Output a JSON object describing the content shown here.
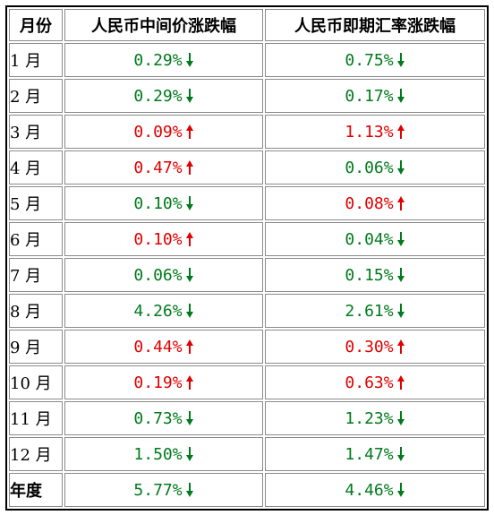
{
  "table": {
    "headers": {
      "month": "月份",
      "mid_change": "人民币中间价涨跌幅",
      "spot_change": "人民币即期汇率涨跌幅"
    },
    "rows": [
      {
        "month": "1 月",
        "mid": "0.29%",
        "mid_dir": "down",
        "spot": "0.75%",
        "spot_dir": "down"
      },
      {
        "month": "2 月",
        "mid": "0.29%",
        "mid_dir": "down",
        "spot": "0.17%",
        "spot_dir": "down"
      },
      {
        "month": "3 月",
        "mid": "0.09%",
        "mid_dir": "up",
        "spot": "1.13%",
        "spot_dir": "up"
      },
      {
        "month": "4 月",
        "mid": "0.47%",
        "mid_dir": "up",
        "spot": "0.06%",
        "spot_dir": "down"
      },
      {
        "month": "5 月",
        "mid": "0.10%",
        "mid_dir": "down",
        "spot": "0.08%",
        "spot_dir": "up"
      },
      {
        "month": "6 月",
        "mid": "0.10%",
        "mid_dir": "up",
        "spot": "0.04%",
        "spot_dir": "down"
      },
      {
        "month": "7 月",
        "mid": "0.06%",
        "mid_dir": "down",
        "spot": "0.15%",
        "spot_dir": "down"
      },
      {
        "month": "8 月",
        "mid": "4.26%",
        "mid_dir": "down",
        "spot": "2.61%",
        "spot_dir": "down"
      },
      {
        "month": "9 月",
        "mid": "0.44%",
        "mid_dir": "up",
        "spot": "0.30%",
        "spot_dir": "up"
      },
      {
        "month": "10 月",
        "mid": "0.19%",
        "mid_dir": "up",
        "spot": "0.63%",
        "spot_dir": "up"
      },
      {
        "month": "11 月",
        "mid": "0.73%",
        "mid_dir": "down",
        "spot": "1.23%",
        "spot_dir": "down"
      },
      {
        "month": "12 月",
        "mid": "1.50%",
        "mid_dir": "down",
        "spot": "1.47%",
        "spot_dir": "down"
      }
    ],
    "annual": {
      "month": "年度",
      "mid": "5.77%",
      "mid_dir": "down",
      "spot": "4.46%",
      "spot_dir": "down"
    }
  },
  "colors": {
    "down": "#007a1c",
    "up": "#e00000",
    "border": "#8a8a8a"
  },
  "icons": {
    "up": "arrow-up-icon",
    "down": "arrow-down-icon"
  }
}
